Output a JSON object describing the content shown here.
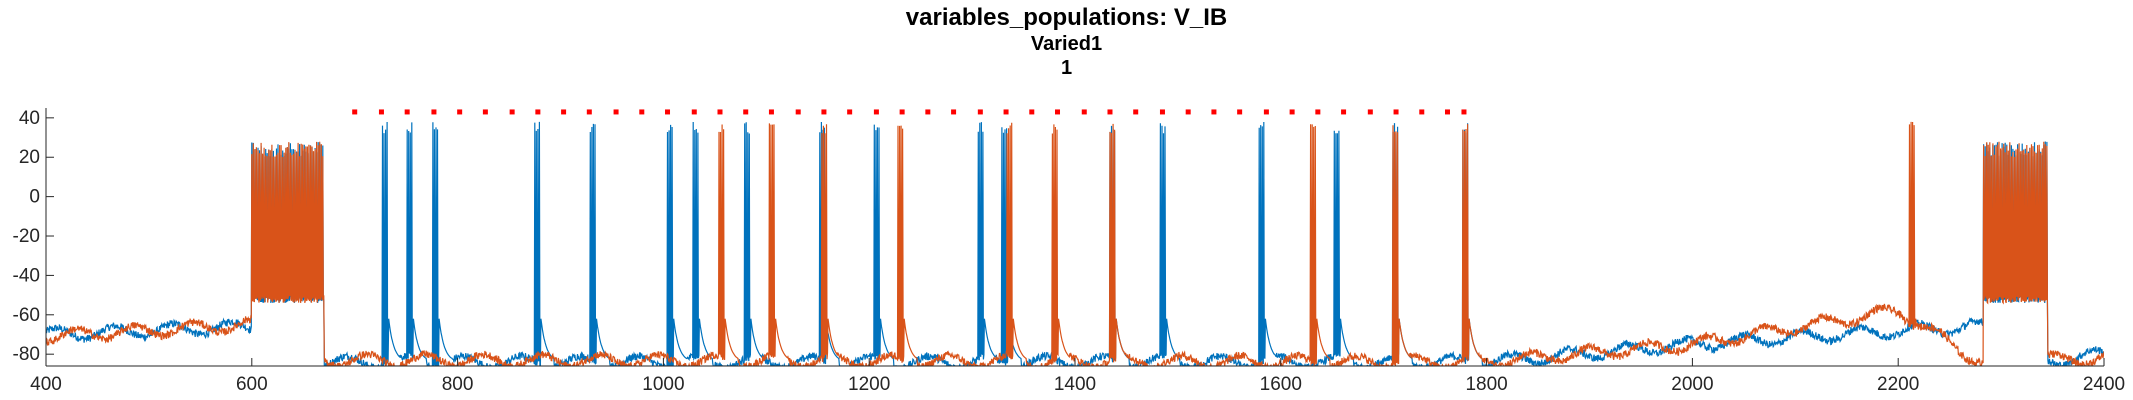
{
  "figure": {
    "title": "variables_populations: V_IB",
    "subtitle1": "Varied1",
    "subtitle2": "1"
  },
  "chart_data": {
    "type": "line",
    "title": "variables_populations: V_IB",
    "xlabel": "",
    "ylabel": "",
    "xlim": [
      400,
      2400
    ],
    "ylim": [
      -86,
      45
    ],
    "xticks": [
      400,
      600,
      800,
      1000,
      1200,
      1400,
      1600,
      1800,
      2000,
      2200,
      2400
    ],
    "yticks": [
      -80,
      -60,
      -40,
      -20,
      0,
      20,
      40
    ],
    "grid": false,
    "legend": "none",
    "colors": {
      "blue": "#0072BD",
      "orange": "#D95319",
      "raster": "#FF0000"
    },
    "series": [
      {
        "color": "#0072BD",
        "burst_times": [
          603,
          728,
          752,
          777,
          876,
          930,
          1005,
          1030,
          1080,
          1153,
          1206,
          1307,
          1330,
          1435,
          1484,
          1580,
          1653,
          1710,
          1778,
          2290
        ],
        "baseline_segments": [
          [
            400,
            -70
          ],
          [
            600,
            -66
          ],
          [
            670,
            -84
          ],
          [
            1800,
            -84
          ],
          [
            2000,
            -75
          ],
          [
            2200,
            -68
          ],
          [
            2280,
            -66
          ],
          [
            2340,
            -84
          ],
          [
            2400,
            -80
          ]
        ]
      },
      {
        "color": "#D95319",
        "burst_times": [
          603,
          1055,
          1104,
          1155,
          1229,
          1335,
          1379,
          1435,
          1630,
          1710,
          1778,
          2212,
          2290
        ],
        "baseline_segments": [
          [
            400,
            -71
          ],
          [
            600,
            -65
          ],
          [
            670,
            -83
          ],
          [
            1800,
            -84
          ],
          [
            2000,
            -75
          ],
          [
            2200,
            -58
          ],
          [
            2280,
            -84
          ],
          [
            2400,
            -82
          ]
        ]
      }
    ],
    "raster_dots": {
      "y": 43,
      "x": [
        700,
        726,
        751,
        777,
        802,
        827,
        853,
        878,
        903,
        928,
        954,
        979,
        1004,
        1030,
        1055,
        1080,
        1105,
        1131,
        1156,
        1181,
        1207,
        1232,
        1257,
        1282,
        1308,
        1333,
        1358,
        1383,
        1409,
        1434,
        1459,
        1485,
        1510,
        1535,
        1560,
        1586,
        1611,
        1636,
        1661,
        1687,
        1712,
        1737,
        1762,
        1778
      ]
    }
  }
}
